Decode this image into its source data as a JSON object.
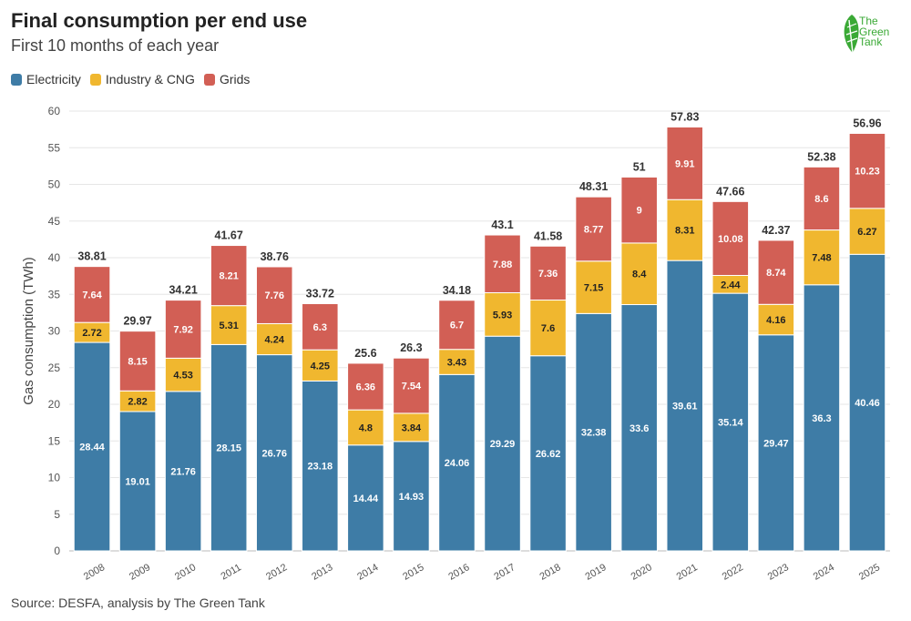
{
  "header": {
    "title": "Final consumption per end use",
    "subtitle": "First 10 months of each year"
  },
  "legend": [
    {
      "label": "Electricity",
      "color": "#3e7ca6"
    },
    {
      "label": "Industry & CNG",
      "color": "#f0b72f"
    },
    {
      "label": "Grids",
      "color": "#d25f55"
    }
  ],
  "logo": {
    "line1": "The",
    "line2": "Green",
    "line3": "Tank"
  },
  "footer": {
    "source": "Source: DESFA, analysis by The Green Tank"
  },
  "chart_data": {
    "type": "bar",
    "stacked": true,
    "title": "Final consumption per end use",
    "subtitle": "First 10 months of each year",
    "xlabel": "",
    "ylabel": "Gas consumption (TWh)",
    "ylim": [
      0,
      60
    ],
    "yticks": [
      0,
      5,
      10,
      15,
      20,
      25,
      30,
      35,
      40,
      45,
      50,
      55,
      60
    ],
    "grid": true,
    "legend_position": "top-left",
    "categories": [
      "2008",
      "2009",
      "2010",
      "2011",
      "2012",
      "2013",
      "2014",
      "2015",
      "2016",
      "2017",
      "2018",
      "2019",
      "2020",
      "2021",
      "2022",
      "2023",
      "2024",
      "2025"
    ],
    "series": [
      {
        "name": "Electricity",
        "color": "#3e7ca6",
        "label_color": "#ffffff",
        "values": [
          28.44,
          19.01,
          21.76,
          28.15,
          26.76,
          23.18,
          14.44,
          14.93,
          24.06,
          29.29,
          26.62,
          32.38,
          33.6,
          39.61,
          35.14,
          29.47,
          36.3,
          40.46
        ]
      },
      {
        "name": "Industry & CNG",
        "color": "#f0b72f",
        "label_color": "#222222",
        "values": [
          2.72,
          2.82,
          4.53,
          5.31,
          4.24,
          4.25,
          4.8,
          3.84,
          3.43,
          5.93,
          7.6,
          7.15,
          8.4,
          8.31,
          2.44,
          4.16,
          7.48,
          6.27
        ]
      },
      {
        "name": "Grids",
        "color": "#d25f55",
        "label_color": "#ffffff",
        "values": [
          7.64,
          8.15,
          7.92,
          8.21,
          7.76,
          6.3,
          6.36,
          7.54,
          6.7,
          7.88,
          7.36,
          8.77,
          9,
          9.91,
          10.08,
          8.74,
          8.6,
          10.23
        ]
      }
    ],
    "totals": [
      "38.81",
      "29.97",
      "34.21",
      "41.67",
      "38.76",
      "33.72",
      "25.6",
      "26.3",
      "34.18",
      "43.1",
      "41.58",
      "48.31",
      "51",
      "57.83",
      "47.66",
      "42.37",
      "52.38",
      "56.96"
    ]
  }
}
